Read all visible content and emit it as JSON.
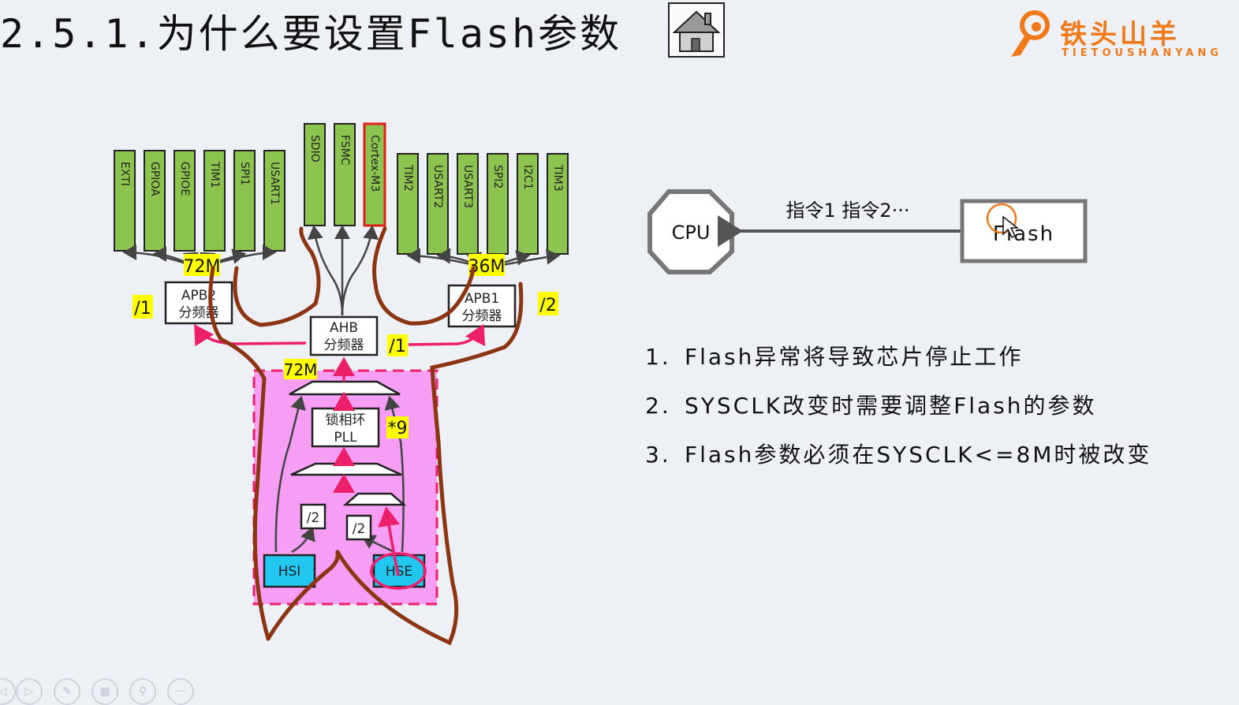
{
  "slide": {
    "title": "2.5.1.为什么要设置Flash参数",
    "home_icon": "house-icon",
    "logo": {
      "text": "铁头山羊",
      "subtitle": "TIETOUSHANYANG",
      "icon": "goat-head-logo-icon",
      "color": "#f07a1a"
    }
  },
  "clock_tree": {
    "apb2_peripherals": [
      "EXTI",
      "GPIOA",
      "GPIOE",
      "TIM1",
      "SPI1",
      "USART1"
    ],
    "ahb_peripherals": [
      "SDIO",
      "FSMC",
      "Cortex-M3"
    ],
    "apb1_peripherals": [
      "TIM2",
      "USART2",
      "USART3",
      "SPI2",
      "I2C1",
      "TIM3"
    ],
    "apb2_freq": "72M",
    "apb1_freq": "36M",
    "ahb_freq": "72M",
    "apb2_prescaler": "APB2分频器",
    "apb1_prescaler": "APB1分频器",
    "ahb_prescaler": "AHB分频器",
    "apb2_div": "/1",
    "apb1_div": "/2",
    "ahb_div": "/1",
    "pll_label": "锁相环PLL",
    "pll_mul": "*9",
    "hsi_div": "/2",
    "hse_div": "/2",
    "hsi": "HSI",
    "hse": "HSE",
    "colors": {
      "peripheral": "#8dc44f",
      "highlight": "#ffff00",
      "oscillator": "#22c7f0",
      "pll_region": "#f59ef3",
      "pink_annotation": "#ec1f6a",
      "brown_annotation": "#8b3512"
    }
  },
  "cpu_flash": {
    "cpu_label": "CPU",
    "flash_label": "Flash",
    "instructions_label": "指令1  指令2···"
  },
  "points": [
    {
      "num": "1.",
      "text": "Flash异常将导致芯片停止工作"
    },
    {
      "num": "2.",
      "text": "SYSCLK改变时需要调整Flash的参数"
    },
    {
      "num": "3.",
      "text": "Flash参数必须在SYSCLK<=8M时被改变"
    }
  ],
  "toolbar": {
    "buttons": [
      "play-icon",
      "pen-icon",
      "slides-icon",
      "zoom-icon",
      "more-icon"
    ]
  }
}
